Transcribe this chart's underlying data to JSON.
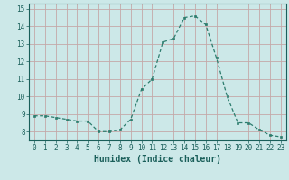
{
  "x": [
    0,
    1,
    2,
    3,
    4,
    5,
    6,
    7,
    8,
    9,
    10,
    11,
    12,
    13,
    14,
    15,
    16,
    17,
    18,
    19,
    20,
    21,
    22,
    23
  ],
  "y": [
    8.9,
    8.9,
    8.8,
    8.7,
    8.6,
    8.6,
    8.0,
    8.0,
    8.1,
    8.7,
    10.4,
    11.0,
    13.1,
    13.3,
    14.5,
    14.6,
    14.1,
    12.2,
    10.0,
    8.5,
    8.5,
    8.1,
    7.8,
    7.7
  ],
  "line_color": "#2d7d6e",
  "marker": "s",
  "markersize": 1.8,
  "linewidth": 0.9,
  "xlabel": "Humidex (Indice chaleur)",
  "xlabel_fontsize": 7,
  "xlabel_color": "#1a5f5a",
  "xlabel_bold": true,
  "ylim": [
    7.5,
    15.3
  ],
  "xlim": [
    -0.5,
    23.5
  ],
  "yticks": [
    8,
    9,
    10,
    11,
    12,
    13,
    14,
    15
  ],
  "xticks": [
    0,
    1,
    2,
    3,
    4,
    5,
    6,
    7,
    8,
    9,
    10,
    11,
    12,
    13,
    14,
    15,
    16,
    17,
    18,
    19,
    20,
    21,
    22,
    23
  ],
  "plot_bg": "#cce8e8",
  "fig_bg": "#cce8e8",
  "grid_color": "#c4a8a8",
  "tick_color": "#1a5f5a",
  "tick_fontsize": 5.5,
  "linestyle": "--"
}
